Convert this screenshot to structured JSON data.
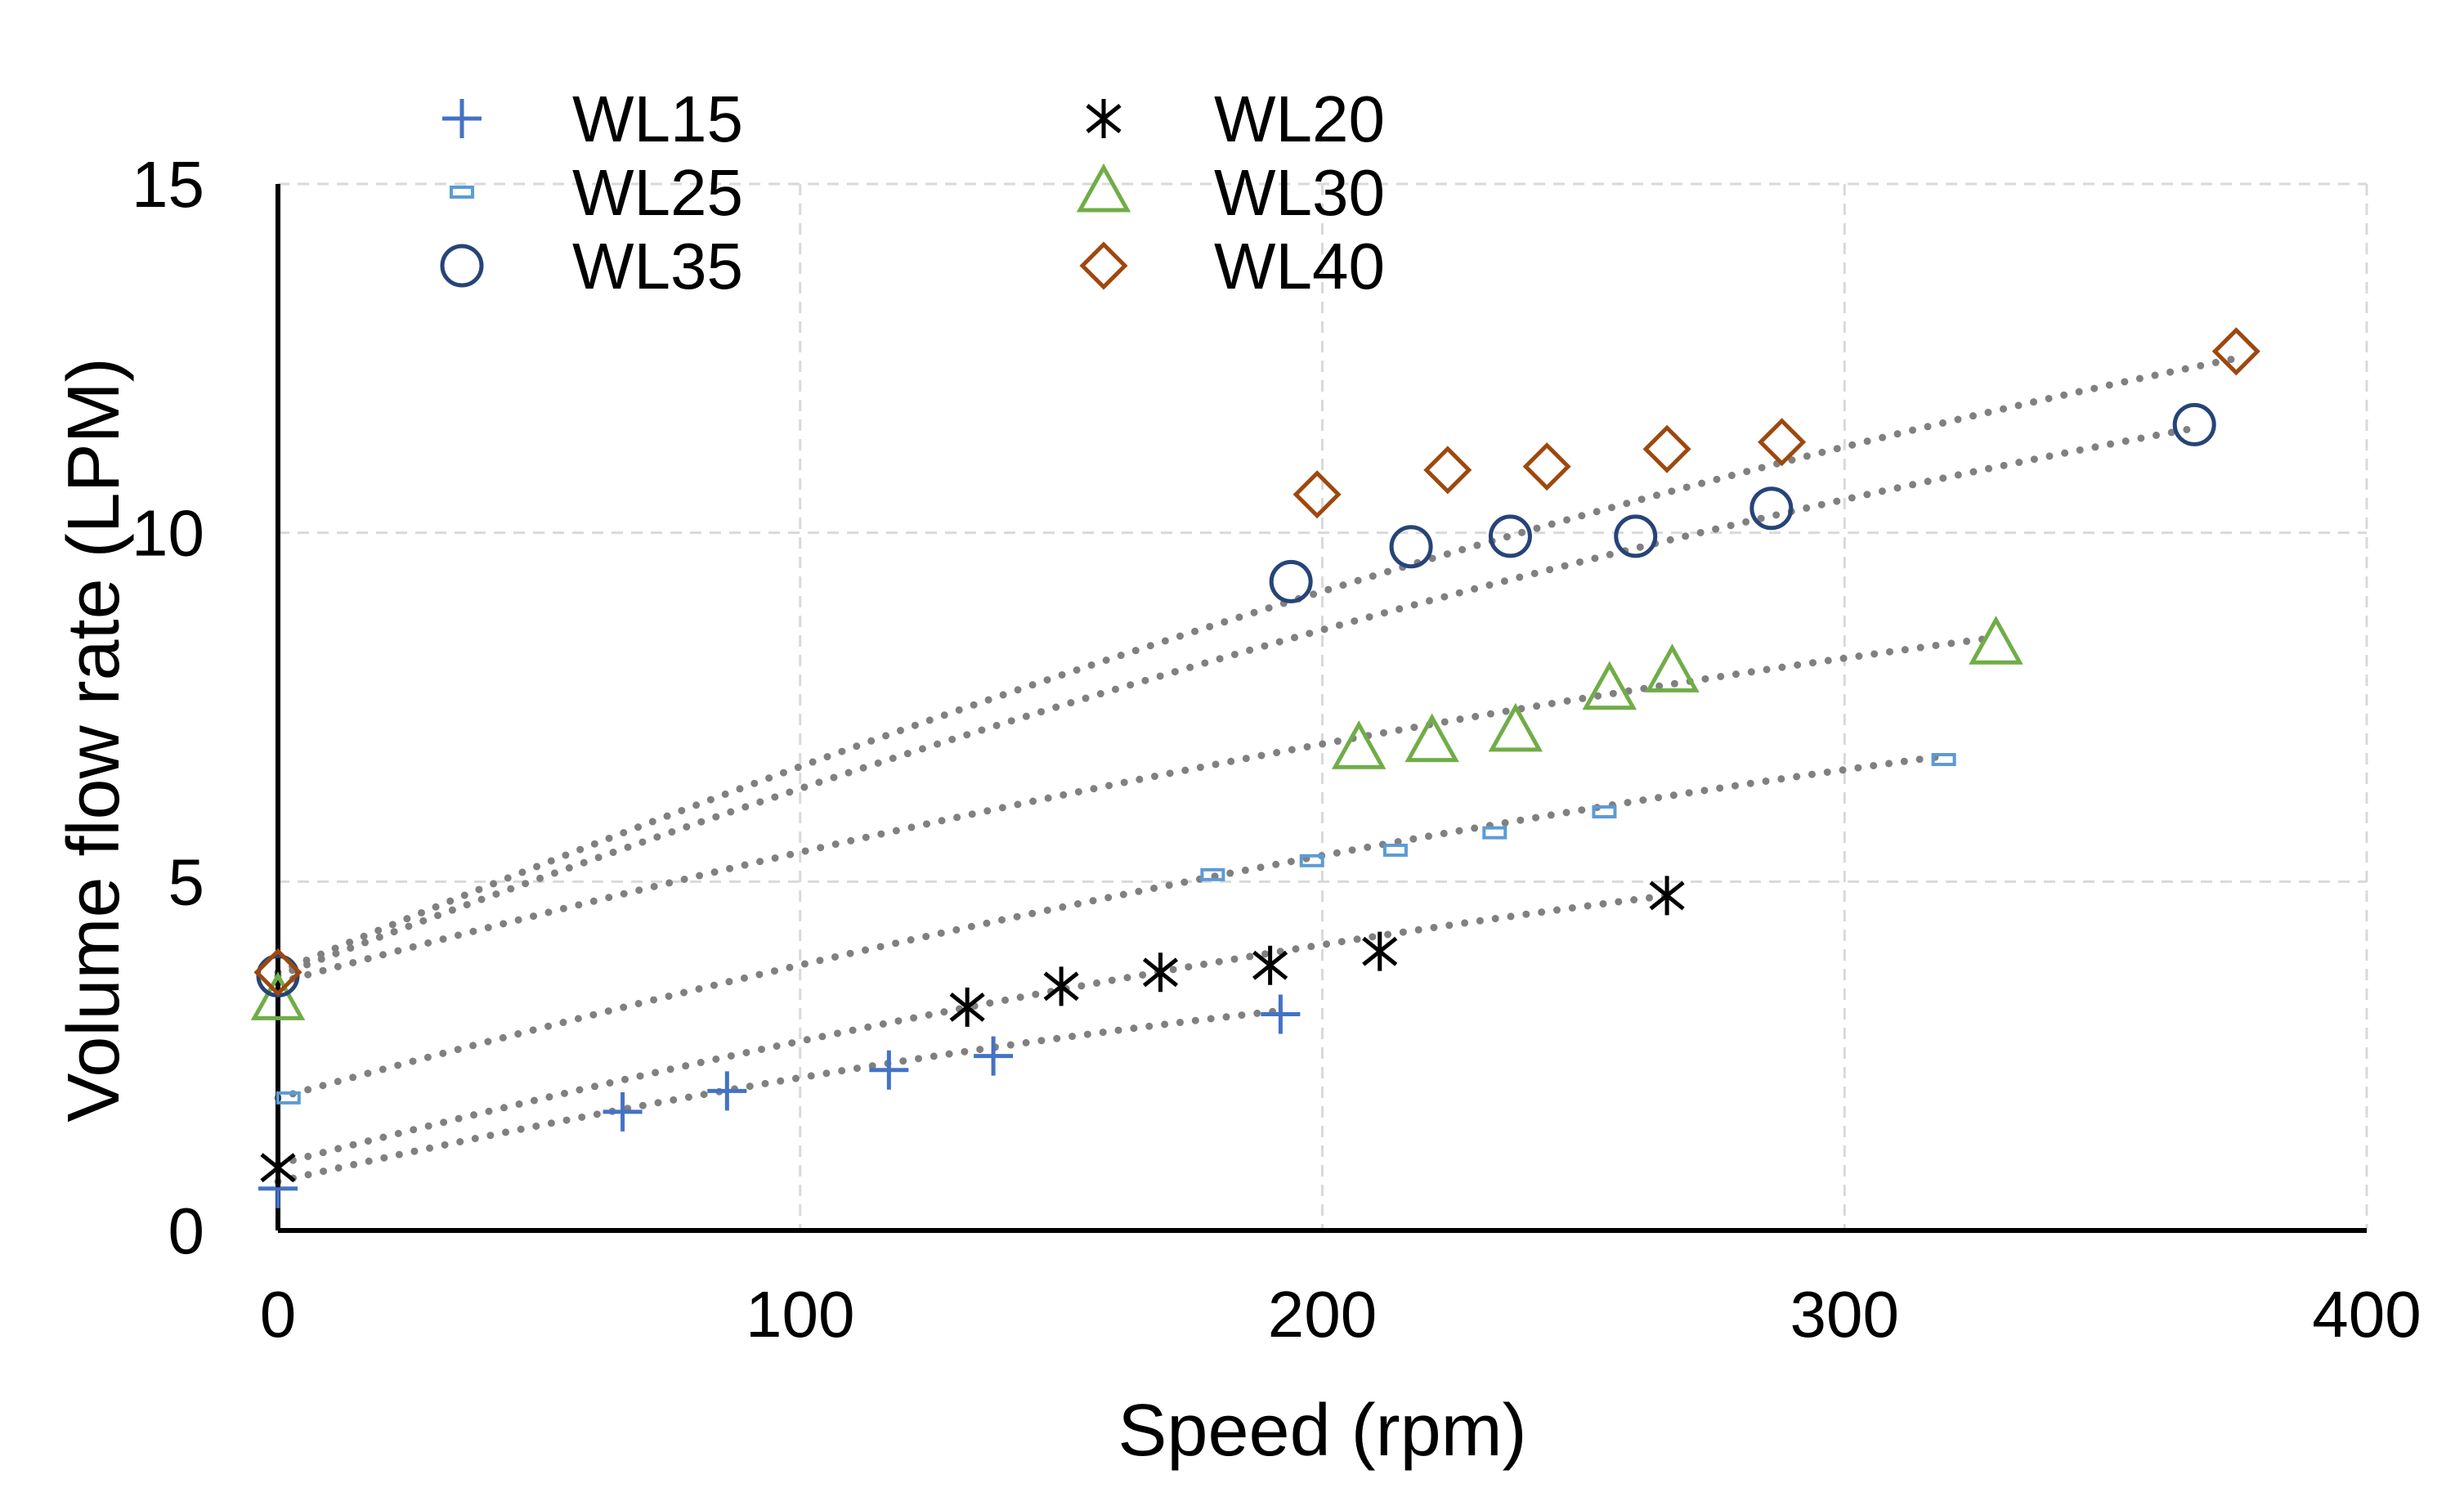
{
  "chart_data": {
    "type": "scatter",
    "title": "",
    "xlabel": "Speed (rpm)",
    "ylabel": "Volume flow rate (LPM)",
    "xlim": [
      0,
      400
    ],
    "ylim": [
      0,
      15
    ],
    "xticks": [
      0,
      100,
      200,
      300,
      400
    ],
    "yticks": [
      0,
      5,
      10,
      15
    ],
    "grid": true,
    "legend_position": "top-left",
    "series": [
      {
        "name": "WL15",
        "marker": "plus",
        "color": "#4472C4",
        "x": [
          0,
          66,
          86,
          117,
          137,
          192
        ],
        "y": [
          0.6,
          1.7,
          2.0,
          2.3,
          2.5,
          3.1
        ],
        "trend_x": [
          0,
          192
        ],
        "trend_y": [
          0.7,
          3.15
        ]
      },
      {
        "name": "WL20",
        "marker": "asterisk",
        "color": "#000000",
        "x": [
          0,
          132,
          150,
          169,
          190,
          211,
          266
        ],
        "y": [
          0.9,
          3.2,
          3.5,
          3.7,
          3.8,
          4.0,
          4.8
        ],
        "trend_x": [
          0,
          266
        ],
        "trend_y": [
          0.95,
          4.8
        ]
      },
      {
        "name": "WL25",
        "marker": "dash",
        "color": "#5B9BD5",
        "x": [
          2,
          179,
          198,
          214,
          233,
          254,
          319
        ],
        "y": [
          1.9,
          5.1,
          5.3,
          5.45,
          5.7,
          6.0,
          6.75
        ],
        "trend_x": [
          0,
          319
        ],
        "trend_y": [
          1.9,
          6.8
        ]
      },
      {
        "name": "WL30",
        "marker": "triangle",
        "color": "#70AD47",
        "x": [
          0,
          207,
          221,
          237,
          255,
          267,
          329
        ],
        "y": [
          3.3,
          6.9,
          7.0,
          7.15,
          7.75,
          8.0,
          8.4
        ],
        "trend_x": [
          0,
          329
        ],
        "trend_y": [
          3.55,
          8.5
        ]
      },
      {
        "name": "WL35",
        "marker": "circle",
        "color": "#264478",
        "x": [
          0,
          194,
          217,
          236,
          260,
          286,
          367
        ],
        "y": [
          3.65,
          9.3,
          9.8,
          9.95,
          9.95,
          10.35,
          11.55
        ],
        "trend_x": [
          0,
          367
        ],
        "trend_y": [
          3.65,
          11.5
        ]
      },
      {
        "name": "WL40",
        "marker": "diamond",
        "color": "#9E480E",
        "x": [
          0,
          199,
          224,
          243,
          266,
          288,
          375
        ],
        "y": [
          3.7,
          10.55,
          10.9,
          10.95,
          11.2,
          11.3,
          12.6
        ],
        "trend_x": [
          0,
          375
        ],
        "trend_y": [
          3.7,
          12.5
        ]
      }
    ]
  }
}
